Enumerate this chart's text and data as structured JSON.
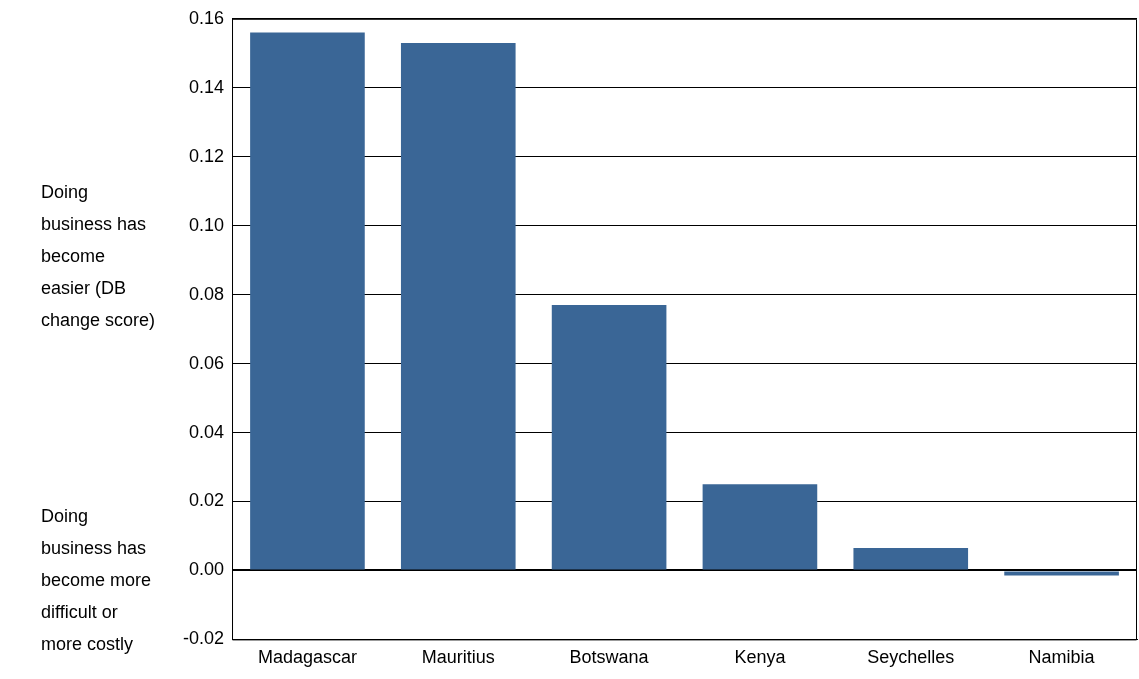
{
  "chart_data": {
    "type": "bar",
    "categories": [
      "Madagascar",
      "Mauritius",
      "Botswana",
      "Kenya",
      "Seychelles",
      "Namibia"
    ],
    "values": [
      0.156,
      0.153,
      0.077,
      0.025,
      0.0065,
      -0.0015
    ],
    "color": "#3a6696",
    "ylim": [
      -0.02,
      0.16
    ],
    "yticks": [
      {
        "value": -0.02,
        "label": "-0.02"
      },
      {
        "value": 0,
        "label": "0.00"
      },
      {
        "value": 0.02,
        "label": "0.02"
      },
      {
        "value": 0.04,
        "label": "0.04"
      },
      {
        "value": 0.06,
        "label": "0.06"
      },
      {
        "value": 0.08,
        "label": "0.08"
      },
      {
        "value": 0.1,
        "label": "0.10"
      },
      {
        "value": 0.12,
        "label": "0.12"
      },
      {
        "value": 0.14,
        "label": "0.14"
      },
      {
        "value": 0.16,
        "label": "0.16"
      }
    ],
    "grid": "y",
    "legend": false,
    "annotations": [
      "Doing business has become easier (DB change score)",
      "Doing business has become more difficult or more costly"
    ]
  }
}
